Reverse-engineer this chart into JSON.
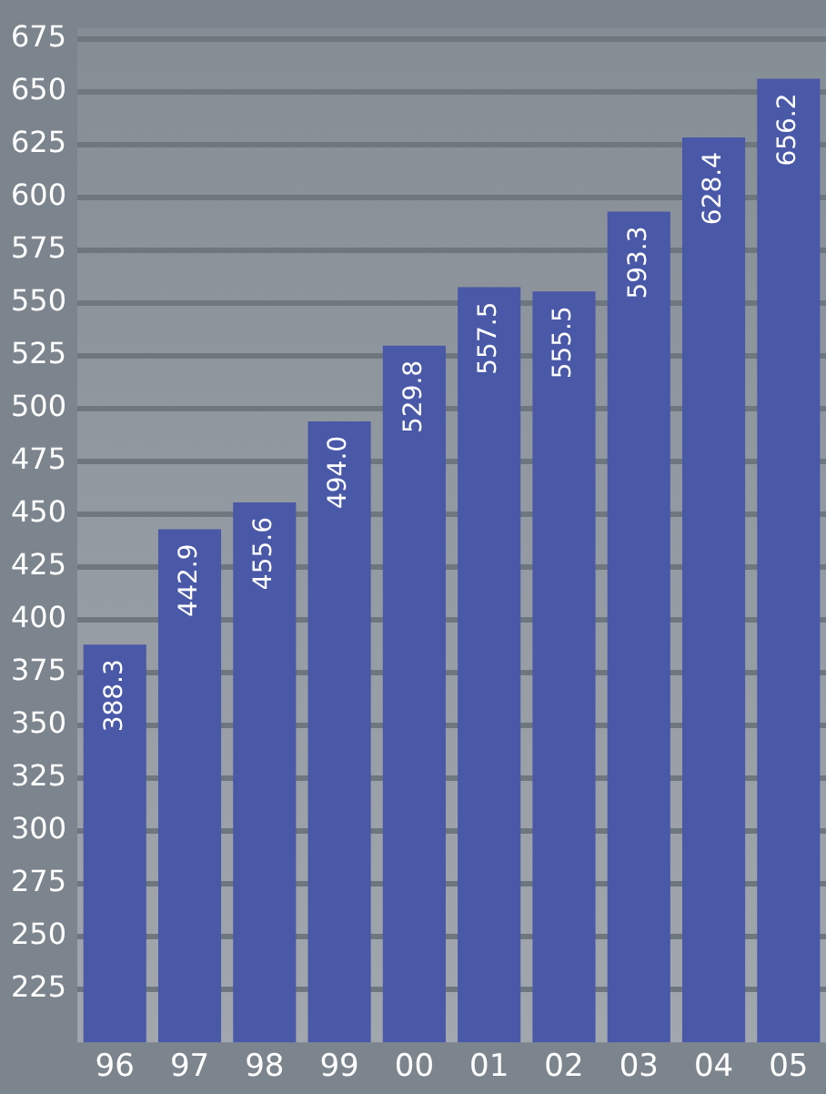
{
  "chart_data": {
    "type": "bar",
    "categories": [
      "96",
      "97",
      "98",
      "99",
      "00",
      "01",
      "02",
      "03",
      "04",
      "05"
    ],
    "values": [
      388.3,
      442.9,
      455.6,
      494.0,
      529.8,
      557.5,
      555.5,
      593.3,
      628.4,
      656.2
    ],
    "value_labels": [
      "388.3",
      "442.9",
      "455.6",
      "494.0",
      "529.8",
      "557.5",
      "555.5",
      "593.3",
      "628.4",
      "656.2"
    ],
    "color": "#4a58a8",
    "ylim": [
      200,
      680
    ],
    "yticks": [
      225,
      250,
      275,
      300,
      325,
      350,
      375,
      400,
      425,
      450,
      475,
      500,
      525,
      550,
      575,
      600,
      625,
      650,
      675
    ],
    "grid": "y"
  }
}
